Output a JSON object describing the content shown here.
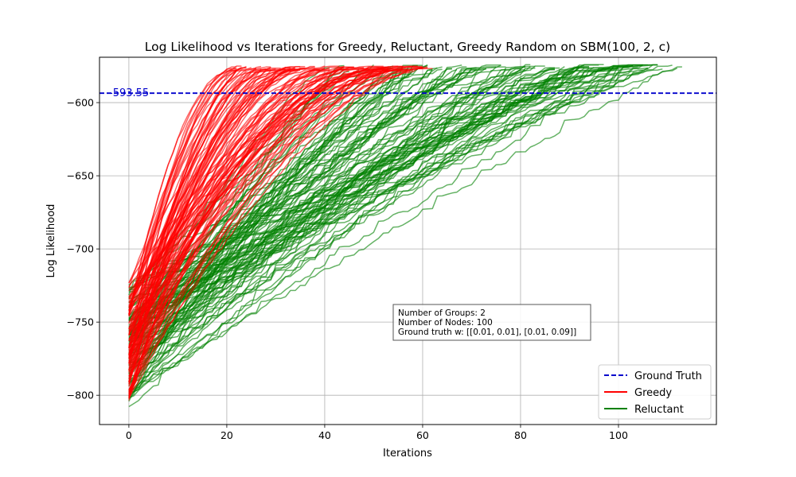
{
  "chart_data": {
    "type": "line",
    "title": "Log Likelihood vs Iterations for Greedy, Reluctant, Greedy Random on SBM(100, 2, c)",
    "xlabel": "Iterations",
    "ylabel": "Log Likelihood",
    "xlim": [
      -6,
      120
    ],
    "ylim": [
      -820,
      -569
    ],
    "xticks": [
      0,
      20,
      40,
      60,
      80,
      100
    ],
    "yticks": [
      -600,
      -650,
      -700,
      -750,
      -800
    ],
    "grid": true,
    "reference_line": {
      "name": "Ground Truth",
      "y": -593.55,
      "label": "-593.55",
      "color": "#0000cc",
      "style": "dashed"
    },
    "legend": {
      "position": "bottom-right",
      "entries": [
        {
          "name": "Ground Truth",
          "color": "#0000cc",
          "style": "dashed"
        },
        {
          "name": "Greedy",
          "color": "#ff0000",
          "style": "solid"
        },
        {
          "name": "Reluctant",
          "color": "#008000",
          "style": "solid"
        }
      ]
    },
    "annotation": [
      "Number of Groups: 2",
      "Number of Nodes: 100",
      "Ground truth w: [[0.01, 0.01], [0.01, 0.09]]"
    ],
    "series": [
      {
        "name": "Greedy",
        "color": "#ff0000",
        "runs": 100,
        "start_range": [
          -805,
          -723
        ],
        "end_value": -578,
        "length_range": [
          20,
          62
        ]
      },
      {
        "name": "Reluctant",
        "color": "#008000",
        "runs": 100,
        "start_range": [
          -808,
          -725
        ],
        "end_value": -578,
        "length_range": [
          40,
          114
        ]
      }
    ]
  }
}
